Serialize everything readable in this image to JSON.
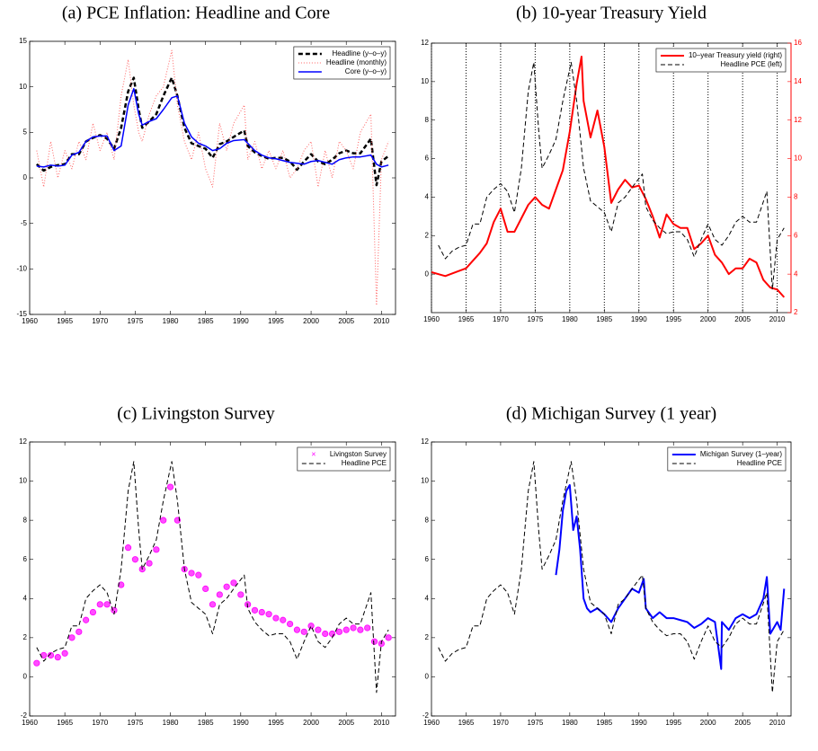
{
  "chart_data": [
    {
      "type": "line",
      "title": "(a) PCE Inflation: Headline and Core",
      "xlim": [
        1960,
        2012
      ],
      "xticks": [
        1960,
        1965,
        1970,
        1975,
        1980,
        1985,
        1990,
        1995,
        2000,
        2005,
        2010
      ],
      "ylim": [
        -15,
        15
      ],
      "yticks": [
        -15,
        -10,
        -5,
        0,
        5,
        10,
        15
      ],
      "xgrid": false,
      "legend": "upper right",
      "x": [
        1961,
        1962,
        1963,
        1964,
        1965,
        1966,
        1967,
        1968,
        1969,
        1970,
        1971,
        1972,
        1973,
        1974,
        1974.8,
        1975.5,
        1976,
        1977,
        1978,
        1979,
        1980.2,
        1981,
        1982,
        1983,
        1984,
        1985,
        1986,
        1987,
        1988,
        1989,
        1990.5,
        1991,
        1992,
        1993,
        1994,
        1995,
        1996,
        1997,
        1998,
        1999,
        2000,
        2001,
        2002,
        2003,
        2004,
        2005,
        2006,
        2007,
        2008.5,
        2009.3,
        2010,
        2011
      ],
      "series": [
        {
          "name": "Headline (y–o–y)",
          "color": "#000000",
          "style": "dashed",
          "width": 2.5,
          "values": [
            1.5,
            0.8,
            1.2,
            1.4,
            1.5,
            2.6,
            2.6,
            4.0,
            4.4,
            4.7,
            4.3,
            3.2,
            5.5,
            9.5,
            11.0,
            7.5,
            5.5,
            6.2,
            7.0,
            9.0,
            11.0,
            9.0,
            5.5,
            3.8,
            3.5,
            3.2,
            2.2,
            3.7,
            4.0,
            4.5,
            5.2,
            3.5,
            2.8,
            2.4,
            2.1,
            2.2,
            2.2,
            1.8,
            0.9,
            1.8,
            2.6,
            1.8,
            1.5,
            2.0,
            2.7,
            3.0,
            2.7,
            2.7,
            4.3,
            -0.8,
            1.8,
            2.4
          ]
        },
        {
          "name": "Headline (monthly)",
          "color": "#ff6060",
          "style": "dotted",
          "width": 1,
          "values": [
            3,
            -1,
            4,
            0,
            3,
            1,
            4,
            2,
            6,
            3,
            5,
            2,
            9,
            13,
            8,
            5,
            4,
            7,
            9,
            10,
            14,
            8,
            4,
            2,
            5,
            1,
            -1,
            6,
            3,
            6,
            8,
            2,
            4,
            1,
            3,
            1,
            3,
            0,
            1,
            3,
            4,
            -1,
            3,
            0,
            4,
            3,
            1,
            5,
            7,
            -14,
            2,
            4
          ]
        },
        {
          "name": "Core (y–o–y)",
          "color": "#0000ff",
          "style": "solid",
          "width": 1.5,
          "values": [
            1.3,
            1.2,
            1.4,
            1.3,
            1.4,
            2.5,
            2.8,
            4.0,
            4.5,
            4.6,
            4.6,
            3.0,
            3.5,
            8.0,
            9.8,
            7.0,
            5.8,
            6.2,
            6.5,
            7.5,
            8.8,
            9.0,
            6.0,
            4.5,
            3.8,
            3.5,
            3.0,
            3.2,
            3.8,
            4.1,
            4.2,
            3.8,
            3.0,
            2.5,
            2.2,
            2.1,
            1.9,
            1.7,
            1.6,
            1.5,
            1.8,
            1.9,
            1.7,
            1.5,
            2.0,
            2.2,
            2.3,
            2.3,
            2.5,
            1.5,
            1.2,
            1.4
          ]
        }
      ]
    },
    {
      "type": "line",
      "title": "(b) 10-year Treasury Yield",
      "xlim": [
        1960,
        2012
      ],
      "xticks": [
        1960,
        1965,
        1970,
        1975,
        1980,
        1985,
        1990,
        1995,
        2000,
        2005,
        2010
      ],
      "ylim": [
        -2,
        12
      ],
      "yticks": [
        0,
        2,
        4,
        6,
        8,
        10,
        12
      ],
      "y2lim": [
        2,
        16
      ],
      "y2ticks": [
        2,
        4,
        6,
        8,
        10,
        12,
        14,
        16
      ],
      "xgrid": true,
      "legend": "upper right",
      "series": [
        {
          "name": "10–year Treasury yield (right)",
          "color": "#ff0000",
          "style": "solid",
          "width": 2,
          "axis": "y2",
          "x": [
            1960,
            1962,
            1965,
            1967,
            1968,
            1969,
            1970,
            1971,
            1972,
            1973,
            1974,
            1975,
            1976,
            1977,
            1978,
            1979,
            1980,
            1981,
            1981.7,
            1982,
            1983,
            1984,
            1985,
            1986,
            1987,
            1988,
            1989,
            1990,
            1991,
            1992,
            1993,
            1994,
            1995,
            1996,
            1997,
            1998,
            1999,
            2000,
            2001,
            2002,
            2003,
            2004,
            2005,
            2006,
            2007,
            2008,
            2009,
            2010,
            2011
          ],
          "values": [
            4.1,
            3.9,
            4.3,
            5.1,
            5.6,
            6.7,
            7.4,
            6.2,
            6.2,
            6.9,
            7.6,
            8.0,
            7.6,
            7.4,
            8.4,
            9.4,
            11.4,
            13.9,
            15.3,
            13.0,
            11.1,
            12.5,
            10.6,
            7.7,
            8.4,
            8.9,
            8.5,
            8.6,
            7.9,
            7.0,
            5.9,
            7.1,
            6.6,
            6.4,
            6.4,
            5.3,
            5.6,
            6.0,
            5.0,
            4.6,
            4.0,
            4.3,
            4.3,
            4.8,
            4.6,
            3.7,
            3.3,
            3.2,
            2.8
          ]
        },
        {
          "name": "Headline PCE (left)",
          "color": "#000000",
          "style": "dashed",
          "width": 1,
          "x": [
            1961,
            1962,
            1963,
            1964,
            1965,
            1966,
            1967,
            1968,
            1969,
            1970,
            1971,
            1972,
            1973,
            1974,
            1974.8,
            1975.5,
            1976,
            1977,
            1978,
            1979,
            1980.2,
            1981,
            1982,
            1983,
            1984,
            1985,
            1986,
            1987,
            1988,
            1989,
            1990.5,
            1991,
            1992,
            1993,
            1994,
            1995,
            1996,
            1997,
            1998,
            1999,
            2000,
            2001,
            2002,
            2003,
            2004,
            2005,
            2006,
            2007,
            2008.5,
            2009.3,
            2010,
            2011
          ],
          "values": [
            1.5,
            0.8,
            1.2,
            1.4,
            1.5,
            2.6,
            2.6,
            4.0,
            4.4,
            4.7,
            4.3,
            3.2,
            5.5,
            9.5,
            11.0,
            7.5,
            5.5,
            6.2,
            7.0,
            9.0,
            11.0,
            9.0,
            5.5,
            3.8,
            3.5,
            3.2,
            2.2,
            3.7,
            4.0,
            4.5,
            5.2,
            3.5,
            2.8,
            2.4,
            2.1,
            2.2,
            2.2,
            1.8,
            0.9,
            1.8,
            2.6,
            1.8,
            1.5,
            2.0,
            2.7,
            3.0,
            2.7,
            2.7,
            4.3,
            -0.8,
            1.8,
            2.4
          ]
        }
      ]
    },
    {
      "type": "line",
      "title": "(c) Livingston Survey",
      "xlim": [
        1960,
        2012
      ],
      "xticks": [
        1960,
        1965,
        1970,
        1975,
        1980,
        1985,
        1990,
        1995,
        2000,
        2005,
        2010
      ],
      "ylim": [
        -2,
        12
      ],
      "yticks": [
        -2,
        0,
        2,
        4,
        6,
        8,
        10,
        12
      ],
      "xgrid": false,
      "legend": "upper right",
      "series": [
        {
          "name": "Livingston Survey",
          "color": "#ff00ff",
          "style": "markers",
          "width": 1,
          "x": [
            1961,
            1962,
            1963,
            1964,
            1965,
            1966,
            1967,
            1968,
            1969,
            1970,
            1971,
            1972,
            1973,
            1974,
            1975,
            1976,
            1977,
            1978,
            1979,
            1980,
            1981,
            1982,
            1983,
            1984,
            1985,
            1986,
            1987,
            1988,
            1989,
            1990,
            1991,
            1992,
            1993,
            1994,
            1995,
            1996,
            1997,
            1998,
            1999,
            2000,
            2001,
            2002,
            2003,
            2004,
            2005,
            2006,
            2007,
            2008,
            2009,
            2010,
            2011
          ],
          "values": [
            0.7,
            1.1,
            1.1,
            1.0,
            1.2,
            2.0,
            2.3,
            2.9,
            3.3,
            3.7,
            3.7,
            3.4,
            4.7,
            6.6,
            6.0,
            5.5,
            5.8,
            6.5,
            8.0,
            9.7,
            8.0,
            5.5,
            5.3,
            5.2,
            4.5,
            3.7,
            4.2,
            4.6,
            4.8,
            4.2,
            3.7,
            3.4,
            3.3,
            3.2,
            3.0,
            2.9,
            2.7,
            2.4,
            2.3,
            2.6,
            2.4,
            2.2,
            2.2,
            2.3,
            2.4,
            2.5,
            2.4,
            2.5,
            1.8,
            1.7,
            2.0
          ]
        },
        {
          "name": "Headline PCE",
          "color": "#000000",
          "style": "dashed",
          "width": 1,
          "x": [
            1961,
            1962,
            1963,
            1964,
            1965,
            1966,
            1967,
            1968,
            1969,
            1970,
            1971,
            1972,
            1973,
            1974,
            1974.8,
            1975.5,
            1976,
            1977,
            1978,
            1979,
            1980.2,
            1981,
            1982,
            1983,
            1984,
            1985,
            1986,
            1987,
            1988,
            1989,
            1990.5,
            1991,
            1992,
            1993,
            1994,
            1995,
            1996,
            1997,
            1998,
            1999,
            2000,
            2001,
            2002,
            2003,
            2004,
            2005,
            2006,
            2007,
            2008.5,
            2009.3,
            2010,
            2011
          ],
          "values": [
            1.5,
            0.8,
            1.2,
            1.4,
            1.5,
            2.6,
            2.6,
            4.0,
            4.4,
            4.7,
            4.3,
            3.2,
            5.5,
            9.5,
            11.0,
            7.5,
            5.5,
            6.2,
            7.0,
            9.0,
            11.0,
            9.0,
            5.5,
            3.8,
            3.5,
            3.2,
            2.2,
            3.7,
            4.0,
            4.5,
            5.2,
            3.5,
            2.8,
            2.4,
            2.1,
            2.2,
            2.2,
            1.8,
            0.9,
            1.8,
            2.6,
            1.8,
            1.5,
            2.0,
            2.7,
            3.0,
            2.7,
            2.7,
            4.3,
            -0.8,
            1.8,
            2.4
          ]
        }
      ]
    },
    {
      "type": "line",
      "title": "(d) Michigan Survey (1 year)",
      "xlim": [
        1960,
        2012
      ],
      "xticks": [
        1960,
        1965,
        1970,
        1975,
        1980,
        1985,
        1990,
        1995,
        2000,
        2005,
        2010
      ],
      "ylim": [
        -2,
        12
      ],
      "yticks": [
        -2,
        0,
        2,
        4,
        6,
        8,
        10,
        12
      ],
      "xgrid": false,
      "legend": "upper right",
      "series": [
        {
          "name": "Michigan Survey (1–year)",
          "color": "#0000ff",
          "style": "solid",
          "width": 2,
          "x": [
            1978,
            1978.5,
            1979,
            1979.5,
            1980,
            1980.5,
            1981,
            1981.5,
            1982,
            1982.5,
            1983,
            1984,
            1985,
            1986,
            1987,
            1988,
            1989,
            1990,
            1990.7,
            1991,
            1992,
            1993,
            1994,
            1995,
            1996,
            1997,
            1998,
            1999,
            2000,
            2001,
            2001.9,
            2002,
            2003,
            2004,
            2005,
            2006,
            2007,
            2008,
            2008.5,
            2009,
            2010,
            2010.5,
            2011
          ],
          "values": [
            5.2,
            6.5,
            8.5,
            9.5,
            9.8,
            7.5,
            8.2,
            6.5,
            4.0,
            3.5,
            3.3,
            3.5,
            3.2,
            2.8,
            3.5,
            4.0,
            4.5,
            4.3,
            5.0,
            3.5,
            3.0,
            3.3,
            3.0,
            3.0,
            2.9,
            2.8,
            2.5,
            2.7,
            3.0,
            2.8,
            0.4,
            2.8,
            2.4,
            3.0,
            3.2,
            3.0,
            3.2,
            4.0,
            5.1,
            2.2,
            2.8,
            2.4,
            4.5
          ]
        },
        {
          "name": "Headline PCE",
          "color": "#000000",
          "style": "dashed",
          "width": 1,
          "x": [
            1961,
            1962,
            1963,
            1964,
            1965,
            1966,
            1967,
            1968,
            1969,
            1970,
            1971,
            1972,
            1973,
            1974,
            1974.8,
            1975.5,
            1976,
            1977,
            1978,
            1979,
            1980.2,
            1981,
            1982,
            1983,
            1984,
            1985,
            1986,
            1987,
            1988,
            1989,
            1990.5,
            1991,
            1992,
            1993,
            1994,
            1995,
            1996,
            1997,
            1998,
            1999,
            2000,
            2001,
            2002,
            2003,
            2004,
            2005,
            2006,
            2007,
            2008.5,
            2009.3,
            2010,
            2011
          ],
          "values": [
            1.5,
            0.8,
            1.2,
            1.4,
            1.5,
            2.6,
            2.6,
            4.0,
            4.4,
            4.7,
            4.3,
            3.2,
            5.5,
            9.5,
            11.0,
            7.5,
            5.5,
            6.2,
            7.0,
            9.0,
            11.0,
            9.0,
            5.5,
            3.8,
            3.5,
            3.2,
            2.2,
            3.7,
            4.0,
            4.5,
            5.2,
            3.5,
            2.8,
            2.4,
            2.1,
            2.2,
            2.2,
            1.8,
            0.9,
            1.8,
            2.6,
            1.8,
            1.5,
            2.0,
            2.7,
            3.0,
            2.7,
            2.7,
            4.3,
            -0.8,
            1.8,
            2.4
          ]
        }
      ]
    }
  ]
}
